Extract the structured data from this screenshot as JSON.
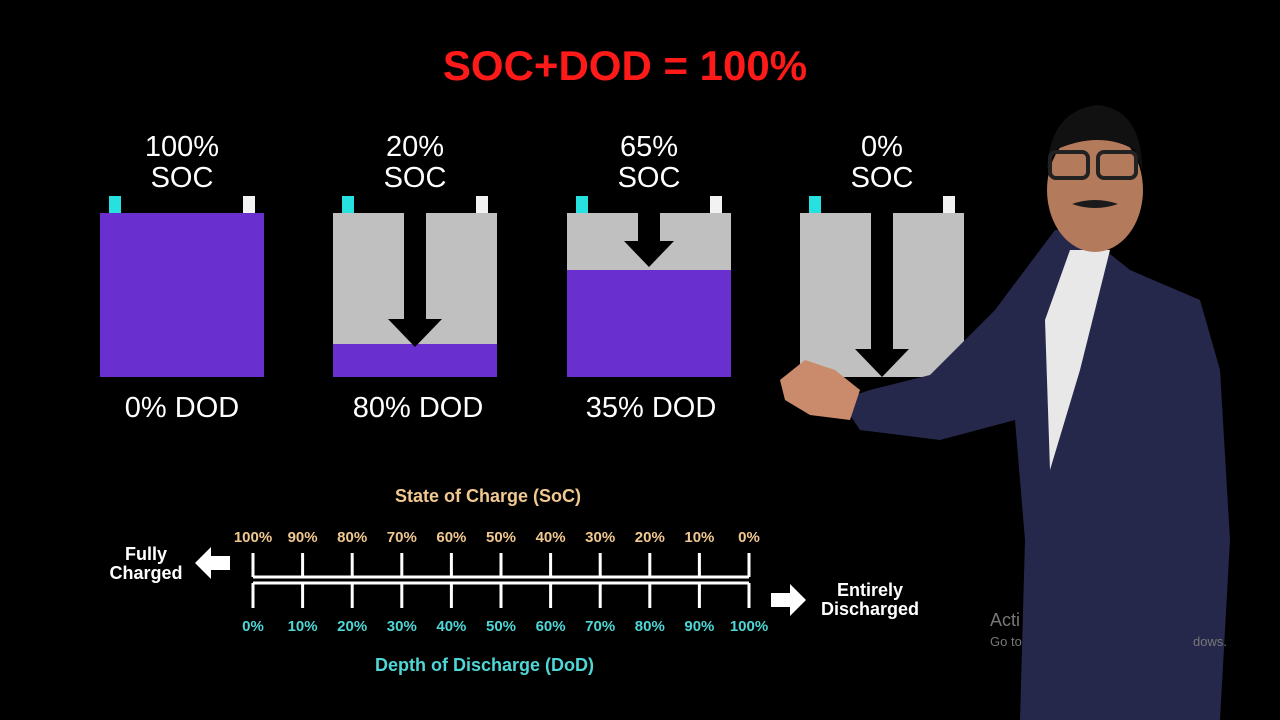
{
  "title": "SOC+DOD = 100%",
  "colors": {
    "title": "#ff1a1a",
    "fill": "#6a2fcf",
    "empty": "#c0c0c0",
    "pos_terminal": "#27e0e0",
    "neg_terminal": "#f2f2f2",
    "soc_scale": "#f0c890",
    "dod_scale": "#4fd6d6"
  },
  "batteries": [
    {
      "soc_label": "100%",
      "soc_word": "SOC",
      "dod_label": "0% DOD",
      "soc_fraction": 1.0
    },
    {
      "soc_label": "20%",
      "soc_word": "SOC",
      "dod_label": "80% DOD",
      "soc_fraction": 0.2
    },
    {
      "soc_label": "65%",
      "soc_word": "SOC",
      "dod_label": "35% DOD",
      "soc_fraction": 0.65
    },
    {
      "soc_label": "0%",
      "soc_word": "SOC",
      "dod_label": "",
      "soc_fraction": 0.0
    }
  ],
  "scale": {
    "soc_title": "State of Charge (SoC)",
    "dod_title": "Depth of Discharge (DoD)",
    "soc_ticks": [
      "100%",
      "90%",
      "80%",
      "70%",
      "60%",
      "50%",
      "40%",
      "30%",
      "20%",
      "10%",
      "0%"
    ],
    "dod_ticks": [
      "0%",
      "10%",
      "20%",
      "30%",
      "40%",
      "50%",
      "60%",
      "70%",
      "80%",
      "90%",
      "100%"
    ],
    "left_label_1": "Fully",
    "left_label_2": "Charged",
    "right_label_1": "Entirely",
    "right_label_2": "Discharged"
  },
  "watermark": {
    "line1": "Acti",
    "line2a": "Go to",
    "line2b": "dows."
  }
}
